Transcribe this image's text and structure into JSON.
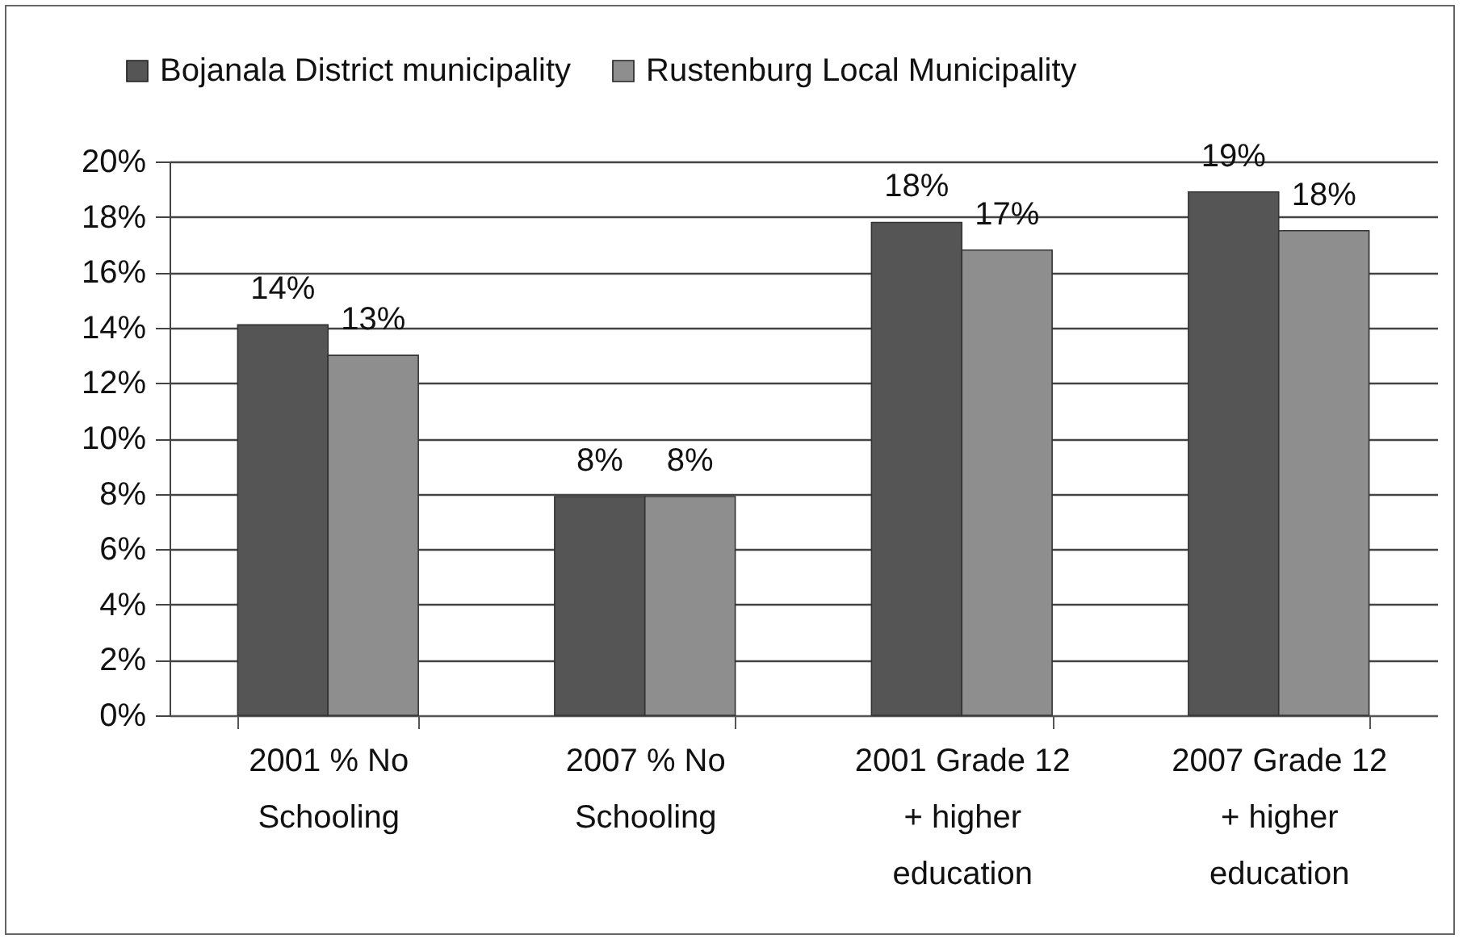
{
  "chart_data": {
    "type": "bar",
    "categories": [
      "2001 % No Schooling",
      "2007 % No Schooling",
      "2001 Grade 12 + higher education",
      "2007 Grade 12 + higher education"
    ],
    "series": [
      {
        "name": "Bojanala District municipality",
        "color": "#555555",
        "values": [
          14.1,
          7.9,
          17.8,
          18.9
        ],
        "value_labels": [
          "14%",
          "8%",
          "18%",
          "19%"
        ]
      },
      {
        "name": "Rustenburg Local Municipality",
        "color": "#8e8e8e",
        "values": [
          13.0,
          7.9,
          16.8,
          17.5
        ],
        "value_labels": [
          "13%",
          "8%",
          "17%",
          "18%"
        ]
      }
    ],
    "ylim": [
      0,
      20
    ],
    "yticks": [
      {
        "value": 0,
        "label": "0%"
      },
      {
        "value": 2,
        "label": "2%"
      },
      {
        "value": 4,
        "label": "4%"
      },
      {
        "value": 6,
        "label": "6%"
      },
      {
        "value": 8,
        "label": "8%"
      },
      {
        "value": 10,
        "label": "10%"
      },
      {
        "value": 12,
        "label": "12%"
      },
      {
        "value": 14,
        "label": "14%"
      },
      {
        "value": 16,
        "label": "16%"
      },
      {
        "value": 18,
        "label": "18%"
      },
      {
        "value": 20,
        "label": "20%"
      }
    ],
    "grid": "y",
    "legend": "top"
  }
}
